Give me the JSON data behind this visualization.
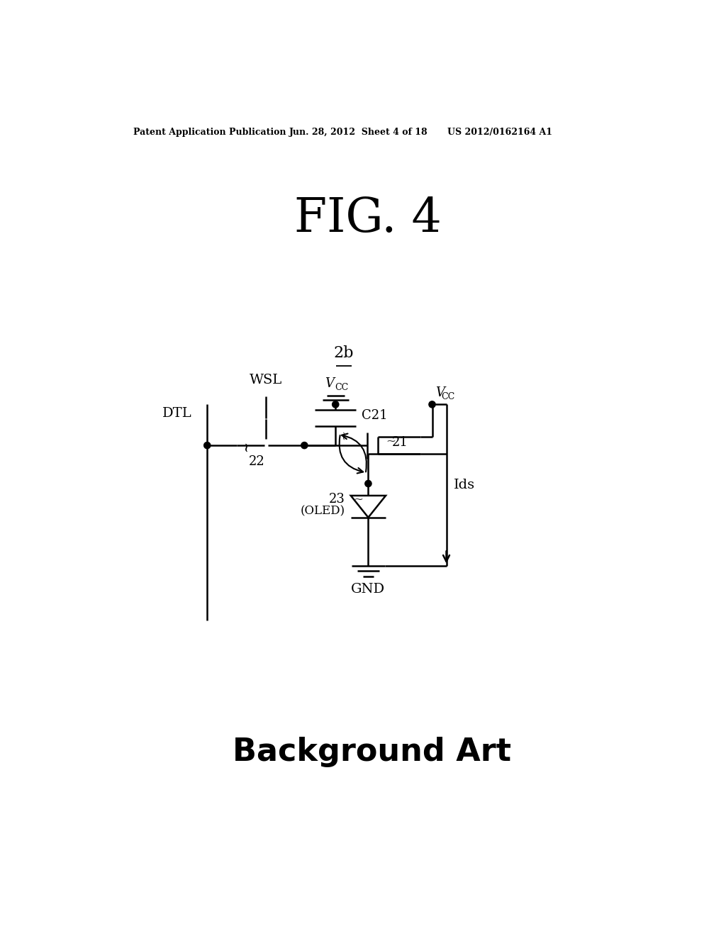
{
  "header_left": "Patent Application Publication",
  "header_mid": "Jun. 28, 2012  Sheet 4 of 18",
  "header_right": "US 2012/0162164 A1",
  "fig_title": "FIG. 4",
  "label_2b": "2b",
  "label_DTL": "DTL",
  "label_WSL": "WSL",
  "label_Vcc": "Vcc",
  "label_C21": "C21",
  "label_22": "22",
  "label_21": "21",
  "label_23": "23",
  "label_OLED": "(OLED)",
  "label_GND": "GND",
  "label_Ids": "Ids",
  "footer": "Background Art",
  "bg_color": "#ffffff",
  "lc": "#000000"
}
